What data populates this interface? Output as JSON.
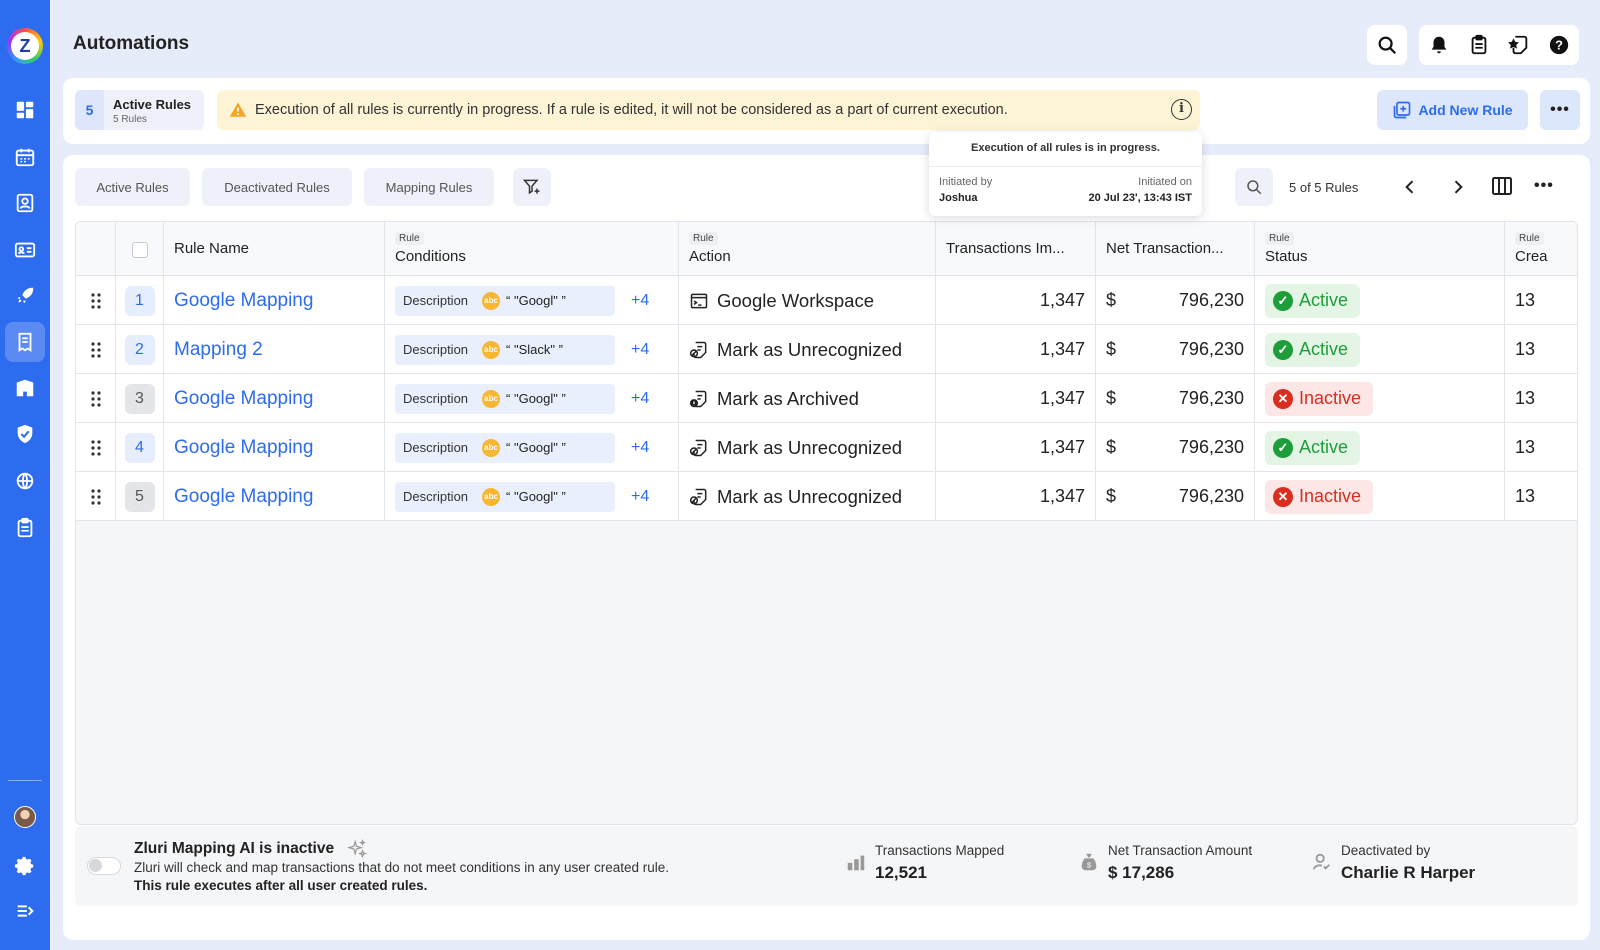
{
  "page": {
    "title": "Automations"
  },
  "sidebar": {
    "items": [
      {
        "name": "dashboard-icon",
        "active": false
      },
      {
        "name": "calendar-icon",
        "active": false
      },
      {
        "name": "user-card-icon",
        "active": false
      },
      {
        "name": "id-card-icon",
        "active": false
      },
      {
        "name": "rocket-icon",
        "active": false
      },
      {
        "name": "receipt-automation-icon",
        "active": true
      },
      {
        "name": "building-icon",
        "active": false
      },
      {
        "name": "shield-check-icon",
        "active": false
      },
      {
        "name": "globe-icon",
        "active": false
      },
      {
        "name": "clipboard-icon",
        "active": false
      }
    ]
  },
  "active_rules": {
    "count": "5",
    "label": "Active Rules",
    "sub": "5 Rules"
  },
  "warning": {
    "text": "Execution of all rules is currently in progress. If a rule is edited, it will not be considered as a part of current execution."
  },
  "add_rule_label": "Add New Rule",
  "tooltip": {
    "heading": "Execution of all rules is in progress.",
    "initiated_by_label": "Initiated by",
    "initiated_by": "Joshua",
    "initiated_on_label": "Initiated on",
    "initiated_on": "20 Jul 23', 13:43 IST"
  },
  "tabs": [
    {
      "label": "Active Rules"
    },
    {
      "label": "Deactivated Rules"
    },
    {
      "label": "Mapping Rules"
    }
  ],
  "pager": {
    "text": "5 of 5 Rules"
  },
  "table": {
    "headers": {
      "rule_name": "Rule Name",
      "conditions_tag": "Rule",
      "conditions": "Conditions",
      "action_tag": "Rule",
      "action": "Action",
      "transactions": "Transactions Im...",
      "net": "Net Transaction...",
      "status_tag": "Rule",
      "status": "Status",
      "created_tag": "Rule",
      "created": "Crea"
    },
    "rows": [
      {
        "num": "1",
        "name": "Google Mapping",
        "cond_field": "Description",
        "cond_value": "“ \"Googl\" ”",
        "cond_more": "+4",
        "action": "Google Workspace",
        "action_icon": "app-terminal-icon",
        "transactions": "1,347",
        "currency": "$",
        "net": "796,230",
        "status": "Active",
        "active": true,
        "created": "13"
      },
      {
        "num": "2",
        "name": "Mapping 2",
        "cond_field": "Description",
        "cond_value": "“ \"Slack\" ”",
        "cond_more": "+4",
        "action": "Mark as Unrecognized",
        "action_icon": "unrecognized-icon",
        "transactions": "1,347",
        "currency": "$",
        "net": "796,230",
        "status": "Active",
        "active": true,
        "created": "13"
      },
      {
        "num": "3",
        "name": "Google Mapping",
        "cond_field": "Description",
        "cond_value": "“ \"Googl\" ”",
        "cond_more": "+4",
        "action": "Mark as Archived",
        "action_icon": "archived-icon",
        "transactions": "1,347",
        "currency": "$",
        "net": "796,230",
        "status": "Inactive",
        "active": false,
        "created": "13"
      },
      {
        "num": "4",
        "name": "Google Mapping",
        "cond_field": "Description",
        "cond_value": "“ \"Googl\" ”",
        "cond_more": "+4",
        "action": "Mark as Unrecognized",
        "action_icon": "unrecognized-icon",
        "transactions": "1,347",
        "currency": "$",
        "net": "796,230",
        "status": "Active",
        "active": true,
        "created": "13"
      },
      {
        "num": "5",
        "name": "Google Mapping",
        "cond_field": "Description",
        "cond_value": "“ \"Googl\" ”",
        "cond_more": "+4",
        "action": "Mark as Unrecognized",
        "action_icon": "unrecognized-icon",
        "transactions": "1,347",
        "currency": "$",
        "net": "796,230",
        "status": "Inactive",
        "active": false,
        "created": "13"
      }
    ]
  },
  "footer": {
    "ai_title": "Zluri Mapping AI is inactive",
    "ai_desc": "Zluri will check and map transactions that do not meet conditions in any user created rule.",
    "ai_note": "This rule executes after all user created rules.",
    "stats": [
      {
        "label": "Transactions Mapped",
        "value": "12,521",
        "icon": "transactions-icon"
      },
      {
        "label": "Net Transaction Amount",
        "value": "$ 17,286",
        "icon": "money-bag-icon"
      },
      {
        "label": "Deactivated by",
        "value": "Charlie R Harper",
        "icon": "user-check-icon"
      }
    ]
  },
  "colors": {
    "sidebar": "#2d6bef",
    "accent": "#2d6bef",
    "active": "#1e9e3a",
    "inactive": "#d92d20",
    "warning_bg": "#fdf3d5"
  }
}
